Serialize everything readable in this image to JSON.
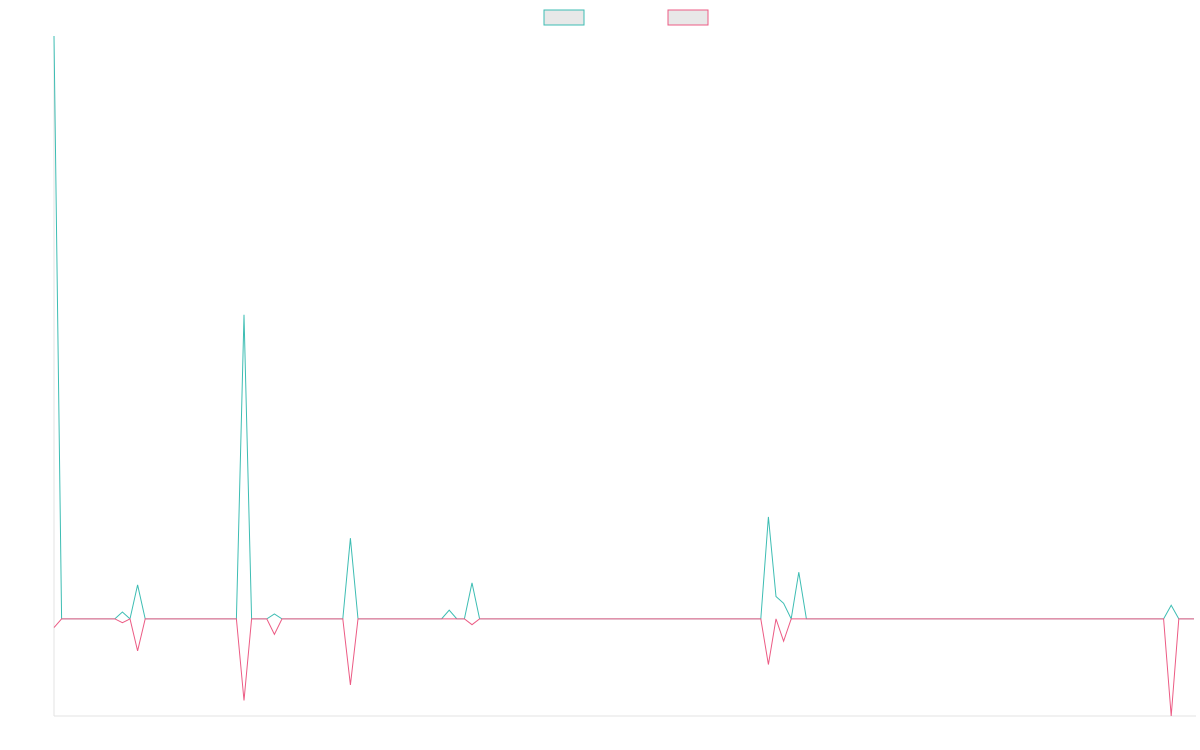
{
  "chart_data": {
    "type": "line",
    "xlim": [
      0,
      150
    ],
    "ylim": [
      -100,
      600
    ],
    "legend": "top",
    "series": [
      {
        "color": "#3dbdb3",
        "values": [
          600,
          0,
          0,
          0,
          0,
          0,
          0,
          0,
          0,
          7,
          0,
          35,
          0,
          0,
          0,
          0,
          0,
          0,
          0,
          0,
          0,
          0,
          0,
          0,
          0,
          313,
          0,
          0,
          0,
          5,
          0,
          0,
          0,
          0,
          0,
          0,
          0,
          0,
          0,
          83,
          0,
          0,
          0,
          0,
          0,
          0,
          0,
          0,
          0,
          0,
          0,
          0,
          9,
          0,
          0,
          37,
          0,
          0,
          0,
          0,
          0,
          0,
          0,
          0,
          0,
          0,
          0,
          0,
          0,
          0,
          0,
          0,
          0,
          0,
          0,
          0,
          0,
          0,
          0,
          0,
          0,
          0,
          0,
          0,
          0,
          0,
          0,
          0,
          0,
          0,
          0,
          0,
          0,
          0,
          105,
          23,
          16,
          0,
          48,
          0,
          0,
          0,
          0,
          0,
          0,
          0,
          0,
          0,
          0,
          0,
          0,
          0,
          0,
          0,
          0,
          0,
          0,
          0,
          0,
          0,
          0,
          0,
          0,
          0,
          0,
          0,
          0,
          0,
          0,
          0,
          0,
          0,
          0,
          0,
          0,
          0,
          0,
          0,
          0,
          0,
          0,
          0,
          0,
          0,
          0,
          0,
          0,
          14,
          0,
          0,
          0
        ]
      },
      {
        "color": "#ec5b84",
        "values": [
          -9,
          0,
          0,
          0,
          0,
          0,
          0,
          0,
          0,
          -4,
          0,
          -33,
          0,
          0,
          0,
          0,
          0,
          0,
          0,
          0,
          0,
          0,
          0,
          0,
          0,
          -84,
          0,
          0,
          0,
          -16,
          0,
          0,
          0,
          0,
          0,
          0,
          0,
          0,
          0,
          -68,
          0,
          0,
          0,
          0,
          0,
          0,
          0,
          0,
          0,
          0,
          0,
          0,
          0,
          0,
          0,
          -6,
          0,
          0,
          0,
          0,
          0,
          0,
          0,
          0,
          0,
          0,
          0,
          0,
          0,
          0,
          0,
          0,
          0,
          0,
          0,
          0,
          0,
          0,
          0,
          0,
          0,
          0,
          0,
          0,
          0,
          0,
          0,
          0,
          0,
          0,
          0,
          0,
          0,
          0,
          -47,
          0,
          -23,
          0,
          0,
          0,
          0,
          0,
          0,
          0,
          0,
          0,
          0,
          0,
          0,
          0,
          0,
          0,
          0,
          0,
          0,
          0,
          0,
          0,
          0,
          0,
          0,
          0,
          0,
          0,
          0,
          0,
          0,
          0,
          0,
          0,
          0,
          0,
          0,
          0,
          0,
          0,
          0,
          0,
          0,
          0,
          0,
          0,
          0,
          0,
          0,
          0,
          0,
          -100,
          0,
          0,
          0
        ]
      }
    ]
  }
}
